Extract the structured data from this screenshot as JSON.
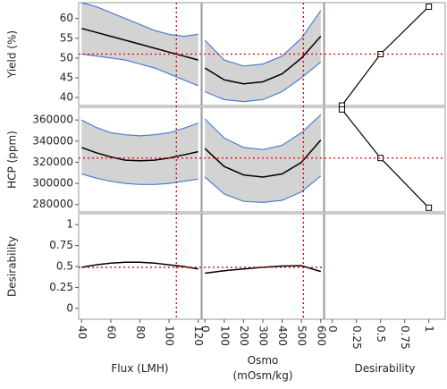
{
  "chart_data": {
    "type": "profiler",
    "band_color": "#d3d3d3",
    "band_edge_color": "#4a7fd4",
    "line_color": "#000000",
    "reference_color": "#e00000",
    "factors": [
      {
        "name": "Flux (LMH)",
        "xlim": [
          38,
          122
        ],
        "xticks": [
          40,
          60,
          80,
          100,
          120
        ],
        "current": 105,
        "x": [
          40,
          50,
          60,
          70,
          80,
          90,
          100,
          110,
          120
        ]
      },
      {
        "name": "Osmo (mOsm/kg)",
        "xlim": [
          -15,
          615
        ],
        "xticks": [
          0,
          100,
          200,
          300,
          400,
          500,
          600
        ],
        "current": 510,
        "x": [
          0,
          100,
          200,
          300,
          400,
          500,
          600
        ]
      }
    ],
    "desirability_axis": {
      "name": "Desirability",
      "xlim": [
        -0.08,
        1.17
      ],
      "xticks": [
        0,
        0.25,
        0.5,
        0.75,
        1
      ]
    },
    "responses": [
      {
        "name": "Yield (%)",
        "ylim": [
          38,
          64
        ],
        "yticks": [
          40,
          45,
          50,
          55,
          60
        ],
        "current": 51,
        "profiles": [
          {
            "values": [
              57.5,
              56.5,
              55.5,
              54.5,
              53.5,
              52.5,
              51.5,
              50.5,
              49.5
            ],
            "upper": [
              64,
              63,
              61.5,
              60,
              58.5,
              57,
              56,
              55.5,
              56
            ],
            "lower": [
              51,
              50.5,
              50,
              49.5,
              48.5,
              47.5,
              46,
              44.5,
              43
            ]
          },
          {
            "values": [
              47.5,
              44.5,
              43.5,
              44,
              46,
              50,
              55.5
            ],
            "upper": [
              54.5,
              49.5,
              48,
              48.5,
              50.5,
              55,
              62
            ],
            "lower": [
              41.5,
              39.5,
              39,
              39.5,
              41.5,
              45,
              49
            ]
          }
        ],
        "desirability": {
          "x": [
            0.1,
            0.5,
            1
          ],
          "values": [
            38,
            51,
            63
          ]
        }
      },
      {
        "name": "HCP (ppm)",
        "ylim": [
          273000,
          372000
        ],
        "yticks": [
          280000,
          300000,
          320000,
          340000,
          360000
        ],
        "current": 324000,
        "profiles": [
          {
            "values": [
              334000,
              329000,
              325000,
              322000,
              321500,
              322000,
              324000,
              327000,
              330000
            ],
            "upper": [
              360000,
              353000,
              348000,
              346000,
              345000,
              346000,
              348000,
              352000,
              357000
            ],
            "lower": [
              309000,
              305000,
              302000,
              300000,
              299000,
              299000,
              300000,
              302000,
              304000
            ]
          },
          {
            "values": [
              333000,
              316000,
              308000,
              306000,
              309000,
              320000,
              341000
            ],
            "upper": [
              361000,
              343000,
              334000,
              332000,
              336000,
              348000,
              365000
            ],
            "lower": [
              306000,
              290000,
              283000,
              282000,
              284000,
              292000,
              307000
            ]
          }
        ],
        "desirability": {
          "x": [
            0.1,
            0.5,
            1
          ],
          "values": [
            370000,
            324000,
            277000
          ]
        }
      },
      {
        "name": "Desirability",
        "ylim": [
          -0.13,
          1.13
        ],
        "yticks": [
          0,
          0.25,
          0.5,
          0.75,
          1
        ],
        "current": 0.49,
        "profiles": [
          {
            "values": [
              0.49,
              0.52,
              0.54,
              0.55,
              0.55,
              0.54,
              0.52,
              0.5,
              0.47
            ]
          },
          {
            "values": [
              0.42,
              0.45,
              0.47,
              0.49,
              0.505,
              0.51,
              0.44
            ]
          }
        ]
      }
    ]
  }
}
